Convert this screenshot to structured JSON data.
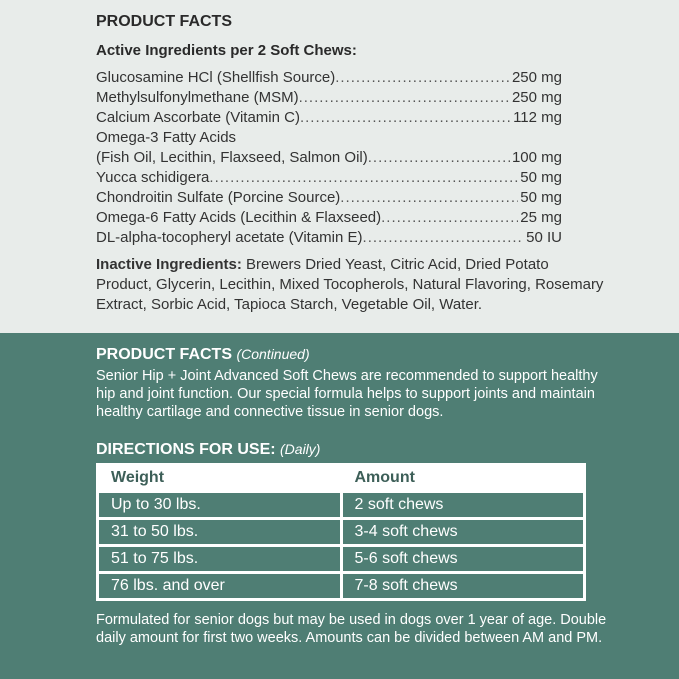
{
  "facts": {
    "title": "PRODUCT FACTS",
    "active_title": "Active Ingredients per 2 Soft Chews:",
    "ingredients": [
      {
        "name": "Glucosamine HCl (Shellfish Source)",
        "amount": "250 mg"
      },
      {
        "name": "Methylsulfonylmethane (MSM)",
        "amount": "250 mg"
      },
      {
        "name": "Calcium Ascorbate (Vitamin C)",
        "amount": "112 mg"
      },
      {
        "name": "Omega-3 Fatty Acids",
        "amount": ""
      },
      {
        "name": "(Fish Oil, Lecithin, Flaxseed, Salmon Oil)",
        "amount": "100 mg"
      },
      {
        "name": "Yucca schidigera",
        "amount": "50 mg"
      },
      {
        "name": "Chondroitin Sulfate (Porcine Source)",
        "amount": "50 mg"
      },
      {
        "name": "Omega-6 Fatty Acids (Lecithin & Flaxseed)",
        "amount": "25 mg"
      },
      {
        "name": "DL-alpha-tocopheryl acetate (Vitamin E)",
        "amount": "50 IU"
      }
    ],
    "inactive_label": "Inactive Ingredients:",
    "inactive_text": " Brewers Dried Yeast, Citric Acid, Dried Potato Product, Glycerin, Lecithin, Mixed Tocopherols, Natural Flavoring, Rosemary Extract, Sorbic Acid, Tapioca Starch, Vegetable Oil, Water."
  },
  "continued": {
    "title": "PRODUCT FACTS",
    "note": "(Continued)",
    "text": "Senior Hip + Joint Advanced Soft Chews are recommended to support healthy hip and joint function. Our special formula helps to support joints and maintain healthy cartilage and connective tissue in senior dogs."
  },
  "directions": {
    "title": "DIRECTIONS FOR USE:",
    "note": "(Daily)",
    "headers": [
      "Weight",
      "Amount"
    ],
    "rows": [
      [
        "Up to 30 lbs.",
        "2 soft chews"
      ],
      [
        "31 to 50 lbs.",
        "3-4 soft chews"
      ],
      [
        "51 to 75 lbs.",
        "5-6 soft chews"
      ],
      [
        "76 lbs. and over",
        "7-8 soft chews"
      ]
    ],
    "footer": "Formulated for senior dogs but may be used in dogs over 1 year of age. Double daily amount for first two weeks. Amounts can be divided between AM and PM."
  },
  "colors": {
    "top_bg": "#e8ecea",
    "green": "#4f7e74"
  }
}
